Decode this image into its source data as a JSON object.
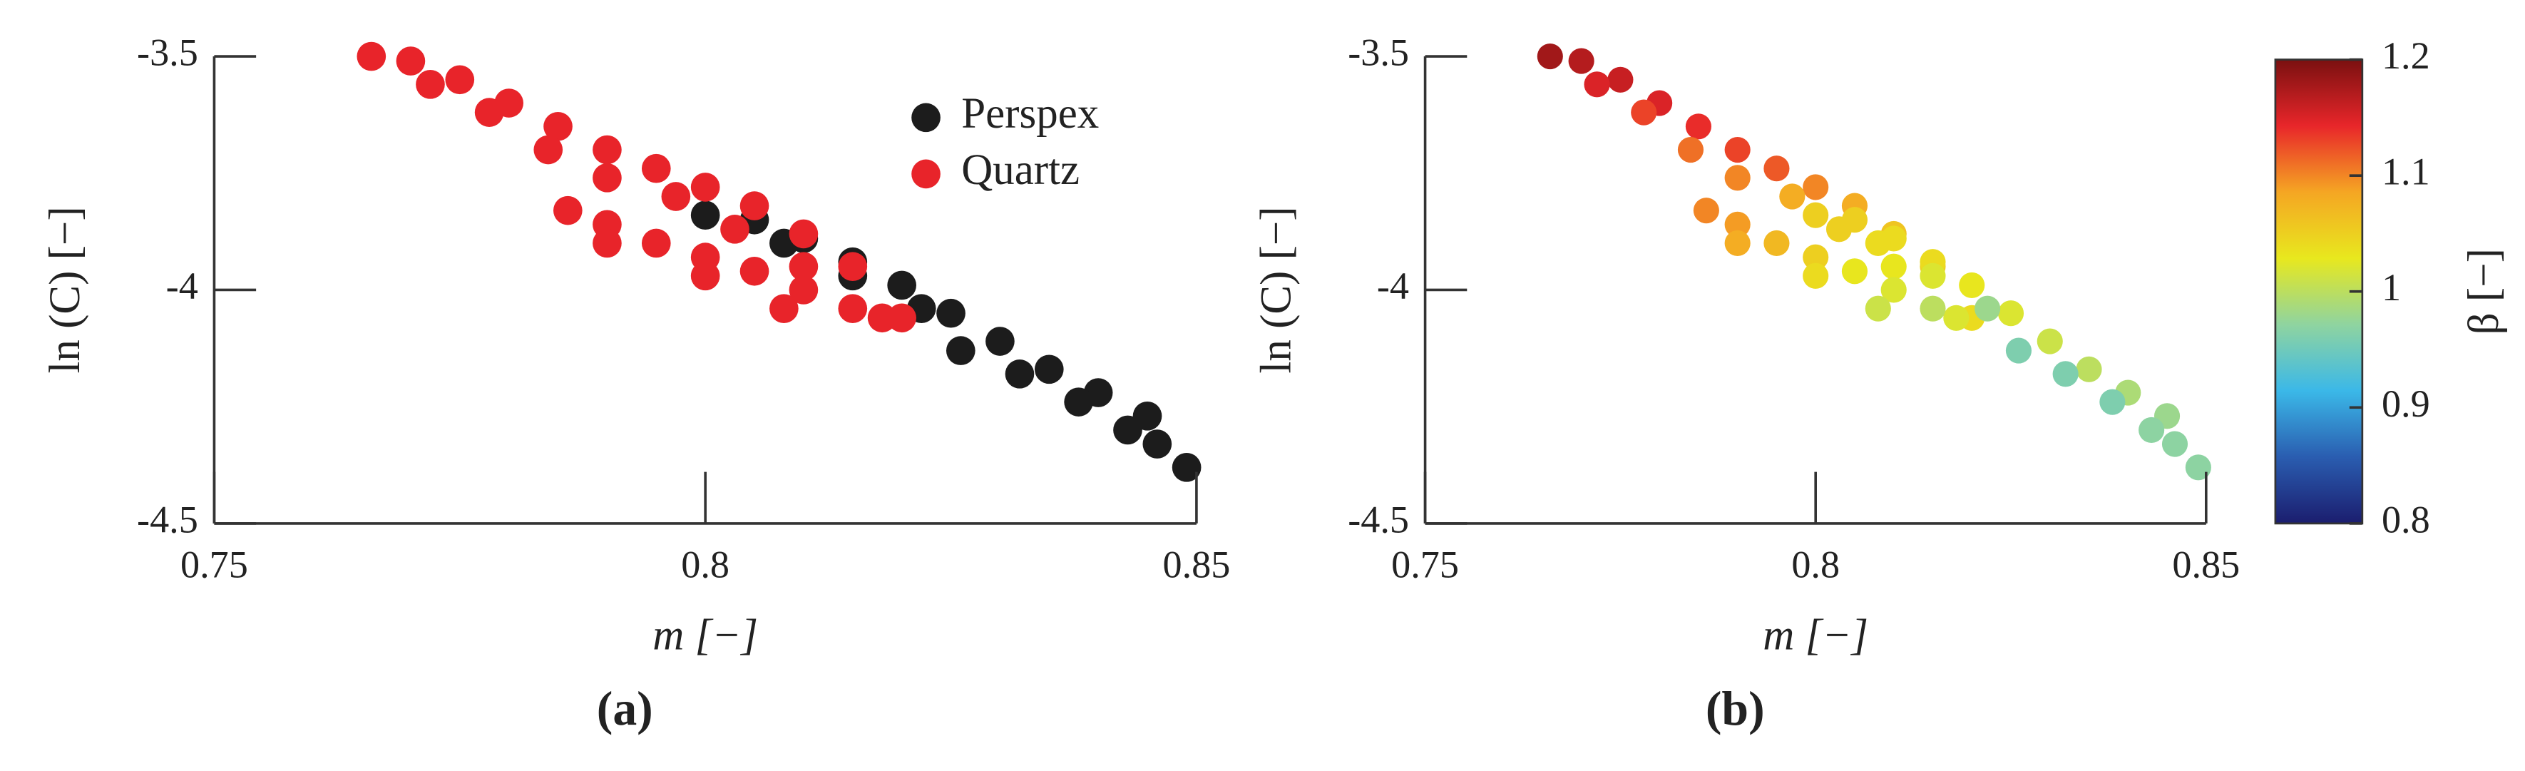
{
  "chart_data": [
    {
      "type": "scatter",
      "caption": "(a)",
      "xlabel": "m [−]",
      "ylabel": "ln (C) [−]",
      "xlim": [
        0.75,
        0.85
      ],
      "ylim": [
        -4.5,
        -3.5
      ],
      "xticks": [
        0.75,
        0.8,
        0.85
      ],
      "yticks": [
        -4.5,
        -4,
        -3.5
      ],
      "legend": "upper right",
      "series": [
        {
          "name": "Perspex",
          "color": "#1c1c1c",
          "x": [
            0.8,
            0.805,
            0.81,
            0.815,
            0.82,
            0.825,
            0.83,
            0.835,
            0.84,
            0.845,
            0.849,
            0.808,
            0.815,
            0.822,
            0.826,
            0.832,
            0.838,
            0.843,
            0.846
          ],
          "y": [
            -3.84,
            -3.85,
            -3.89,
            -3.94,
            -3.99,
            -4.05,
            -4.11,
            -4.17,
            -4.22,
            -4.27,
            -4.38,
            -3.9,
            -3.97,
            -4.04,
            -4.13,
            -4.18,
            -4.24,
            -4.3,
            -4.33
          ]
        },
        {
          "name": "Quartz",
          "color": "#e8242a",
          "x": [
            0.766,
            0.77,
            0.775,
            0.78,
            0.785,
            0.79,
            0.795,
            0.8,
            0.805,
            0.81,
            0.815,
            0.82,
            0.772,
            0.778,
            0.784,
            0.79,
            0.797,
            0.803,
            0.81,
            0.818,
            0.786,
            0.79,
            0.795,
            0.8,
            0.805,
            0.81,
            0.815,
            0.79,
            0.8,
            0.808
          ],
          "y": [
            -3.5,
            -3.51,
            -3.55,
            -3.6,
            -3.65,
            -3.7,
            -3.74,
            -3.78,
            -3.82,
            -3.88,
            -3.95,
            -4.06,
            -3.56,
            -3.62,
            -3.7,
            -3.76,
            -3.8,
            -3.87,
            -3.95,
            -4.06,
            -3.83,
            -3.86,
            -3.9,
            -3.93,
            -3.96,
            -4.0,
            -4.04,
            -3.9,
            -3.97,
            -4.04
          ]
        }
      ]
    },
    {
      "type": "scatter",
      "caption": "(b)",
      "xlabel": "m [−]",
      "ylabel": "ln (C) [−]",
      "xlim": [
        0.75,
        0.85
      ],
      "ylim": [
        -4.5,
        -3.5
      ],
      "xticks": [
        0.75,
        0.8,
        0.85
      ],
      "yticks": [
        -4.5,
        -4,
        -3.5
      ],
      "clim": [
        0.8,
        1.2
      ],
      "cticks": [
        0.8,
        0.9,
        1,
        1.1,
        1.2
      ],
      "clabel": "β [−]",
      "colormap": [
        "#1b1d6e",
        "#2a5db0",
        "#3bb8e8",
        "#8fd4a0",
        "#e8e81e",
        "#f5a623",
        "#e8262a",
        "#7a1010"
      ],
      "series": [
        {
          "x": [
            0.766,
            0.77,
            0.775,
            0.78,
            0.785,
            0.79,
            0.795,
            0.8,
            0.805,
            0.81,
            0.815,
            0.82,
            0.772,
            0.778,
            0.784,
            0.79,
            0.797,
            0.803,
            0.81,
            0.818,
            0.786,
            0.79,
            0.795,
            0.8,
            0.805,
            0.81,
            0.815,
            0.79,
            0.8,
            0.808,
            0.8,
            0.805,
            0.81,
            0.815,
            0.82,
            0.825,
            0.83,
            0.835,
            0.84,
            0.845,
            0.849,
            0.808,
            0.815,
            0.822,
            0.826,
            0.832,
            0.838,
            0.843,
            0.846
          ],
          "y": [
            -3.5,
            -3.51,
            -3.55,
            -3.6,
            -3.65,
            -3.7,
            -3.74,
            -3.78,
            -3.82,
            -3.88,
            -3.95,
            -4.06,
            -3.56,
            -3.62,
            -3.7,
            -3.76,
            -3.8,
            -3.87,
            -3.95,
            -4.06,
            -3.83,
            -3.86,
            -3.9,
            -3.93,
            -3.96,
            -4.0,
            -4.04,
            -3.9,
            -3.97,
            -4.04,
            -3.84,
            -3.85,
            -3.89,
            -3.94,
            -3.99,
            -4.05,
            -4.11,
            -4.17,
            -4.22,
            -4.27,
            -4.38,
            -3.9,
            -3.97,
            -4.04,
            -4.13,
            -4.18,
            -4.24,
            -4.3,
            -4.33
          ],
          "c": [
            1.18,
            1.17,
            1.16,
            1.15,
            1.14,
            1.13,
            1.12,
            1.1,
            1.08,
            1.06,
            1.05,
            1.04,
            1.15,
            1.13,
            1.11,
            1.1,
            1.08,
            1.05,
            1.03,
            1.02,
            1.1,
            1.09,
            1.07,
            1.05,
            1.03,
            1.02,
            1.0,
            1.08,
            1.04,
            1.01,
            1.05,
            1.05,
            1.04,
            1.04,
            1.03,
            1.02,
            1.01,
            1.0,
            0.99,
            0.98,
            0.97,
            1.04,
            1.02,
            0.98,
            0.96,
            0.96,
            0.96,
            0.97,
            0.97
          ]
        }
      ]
    }
  ]
}
